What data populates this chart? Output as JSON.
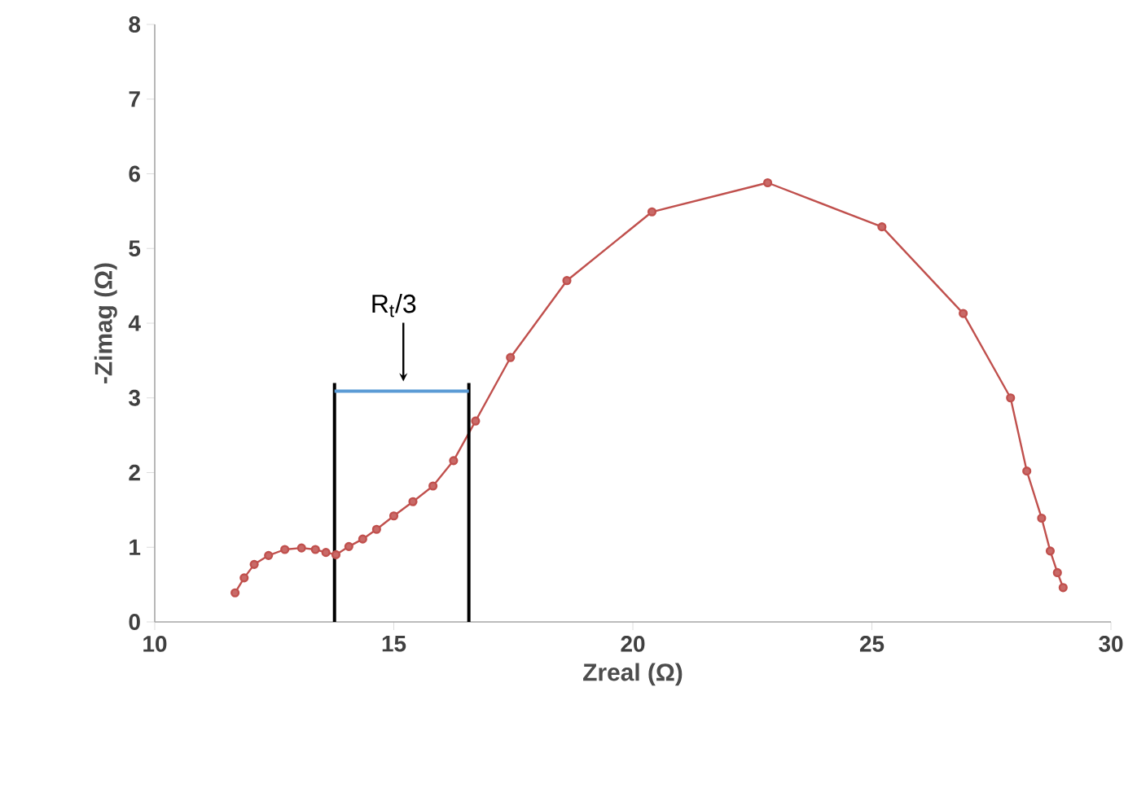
{
  "chart_data": {
    "type": "line",
    "xlabel": "Zreal (Ω)",
    "ylabel": "-Zimag (Ω)",
    "xlim": [
      10,
      30
    ],
    "ylim": [
      0,
      8
    ],
    "xticks": [
      10,
      15,
      20,
      25,
      30
    ],
    "yticks": [
      0,
      1,
      2,
      3,
      4,
      5,
      6,
      7,
      8
    ],
    "grid": false,
    "series": [
      {
        "color": "#c0504d",
        "marker": "circle",
        "x": [
          11.68,
          11.87,
          12.08,
          12.38,
          12.72,
          13.07,
          13.36,
          13.58,
          13.79,
          14.06,
          14.35,
          14.64,
          15.0,
          15.4,
          15.82,
          16.25,
          16.71,
          17.44,
          18.62,
          20.4,
          22.82,
          25.21,
          26.91,
          27.9,
          28.24,
          28.55,
          28.73,
          28.88,
          29.0
        ],
        "values": [
          0.39,
          0.59,
          0.77,
          0.89,
          0.97,
          0.99,
          0.97,
          0.93,
          0.9,
          1.01,
          1.11,
          1.24,
          1.42,
          1.61,
          1.82,
          2.16,
          2.69,
          3.54,
          4.57,
          5.49,
          5.88,
          5.29,
          4.13,
          3.0,
          2.02,
          1.39,
          0.95,
          0.66,
          0.46
        ]
      },
      {
        "color": "#000000",
        "marker": "none",
        "x": [
          13.76,
          13.76
        ],
        "values": [
          0,
          3.2
        ]
      },
      {
        "color": "#000000",
        "marker": "none",
        "x": [
          16.57,
          16.57
        ],
        "values": [
          0,
          3.2
        ]
      },
      {
        "color": "#5b9bd5",
        "marker": "none",
        "x": [
          13.76,
          16.57
        ],
        "values": [
          3.09,
          3.09
        ]
      }
    ],
    "annotations": [
      {
        "text": "R$_{t}$/3",
        "x": 15.2,
        "y": 3.09
      }
    ]
  }
}
